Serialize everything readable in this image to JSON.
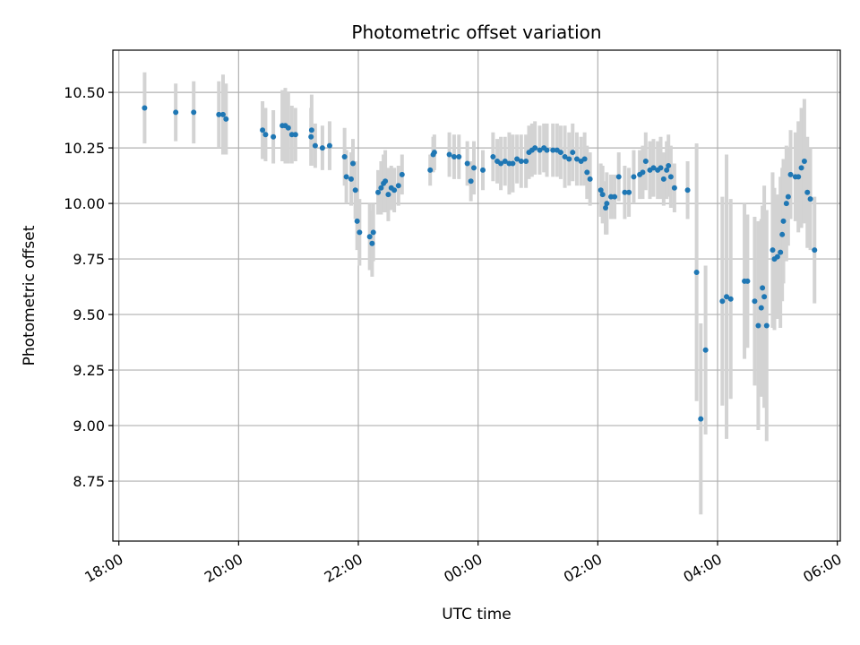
{
  "chart_data": {
    "type": "scatter",
    "title": "Photometric offset variation",
    "xlabel": "UTC time",
    "ylabel": "Photometric offset",
    "grid": true,
    "legend": "none",
    "x_unit": "hours since 18:00 UTC",
    "xlim": [
      -0.1,
      12.05
    ],
    "ylim": [
      8.48,
      10.69
    ],
    "x_ticks": [
      {
        "value": 0,
        "label": "18:00"
      },
      {
        "value": 2,
        "label": "20:00"
      },
      {
        "value": 4,
        "label": "22:00"
      },
      {
        "value": 6,
        "label": "00:00"
      },
      {
        "value": 8,
        "label": "02:00"
      },
      {
        "value": 10,
        "label": "04:00"
      },
      {
        "value": 12,
        "label": "06:00"
      }
    ],
    "y_ticks": [
      {
        "value": 8.75,
        "label": "8.75"
      },
      {
        "value": 9.0,
        "label": "9.00"
      },
      {
        "value": 9.25,
        "label": "9.25"
      },
      {
        "value": 9.5,
        "label": "9.50"
      },
      {
        "value": 9.75,
        "label": "9.75"
      },
      {
        "value": 10.0,
        "label": "10.00"
      },
      {
        "value": 10.25,
        "label": "10.25"
      },
      {
        "value": 10.5,
        "label": "10.50"
      }
    ],
    "colors": {
      "point": "#1f77b4",
      "errorbar": "#d3d3d3",
      "grid": "#b0b0b0",
      "axes": "#000000"
    },
    "series": [
      {
        "name": "Photometric offset",
        "points": [
          [
            0.43,
            10.43,
            0.16
          ],
          [
            0.95,
            10.41,
            0.13
          ],
          [
            1.25,
            10.41,
            0.14
          ],
          [
            1.67,
            10.4,
            0.15
          ],
          [
            1.74,
            10.4,
            0.18
          ],
          [
            1.79,
            10.38,
            0.16
          ],
          [
            2.4,
            10.33,
            0.13
          ],
          [
            2.45,
            10.31,
            0.12
          ],
          [
            2.58,
            10.3,
            0.12
          ],
          [
            2.73,
            10.35,
            0.16
          ],
          [
            2.78,
            10.35,
            0.17
          ],
          [
            2.83,
            10.34,
            0.16
          ],
          [
            2.89,
            10.31,
            0.13
          ],
          [
            2.95,
            10.31,
            0.12
          ],
          [
            3.21,
            10.3,
            0.13
          ],
          [
            3.22,
            10.33,
            0.16
          ],
          [
            3.28,
            10.26,
            0.1
          ],
          [
            3.4,
            10.25,
            0.1
          ],
          [
            3.52,
            10.26,
            0.11
          ],
          [
            3.77,
            10.21,
            0.13
          ],
          [
            3.8,
            10.12,
            0.12
          ],
          [
            3.88,
            10.11,
            0.12
          ],
          [
            3.91,
            10.18,
            0.11
          ],
          [
            3.95,
            10.06,
            0.13
          ],
          [
            3.98,
            9.92,
            0.13
          ],
          [
            4.02,
            9.87,
            0.15
          ],
          [
            4.19,
            9.85,
            0.15
          ],
          [
            4.23,
            9.82,
            0.15
          ],
          [
            4.25,
            9.87,
            0.13
          ],
          [
            4.33,
            10.05,
            0.1
          ],
          [
            4.38,
            10.07,
            0.12
          ],
          [
            4.42,
            10.09,
            0.13
          ],
          [
            4.45,
            10.1,
            0.14
          ],
          [
            4.5,
            10.04,
            0.12
          ],
          [
            4.55,
            10.07,
            0.1
          ],
          [
            4.6,
            10.06,
            0.1
          ],
          [
            4.67,
            10.08,
            0.09
          ],
          [
            4.73,
            10.13,
            0.09
          ],
          [
            5.2,
            10.15,
            0.07
          ],
          [
            5.25,
            10.22,
            0.08
          ],
          [
            5.27,
            10.23,
            0.08
          ],
          [
            5.52,
            10.22,
            0.1
          ],
          [
            5.6,
            10.21,
            0.1
          ],
          [
            5.68,
            10.21,
            0.1
          ],
          [
            5.82,
            10.18,
            0.1
          ],
          [
            5.88,
            10.1,
            0.09
          ],
          [
            5.93,
            10.16,
            0.12
          ],
          [
            6.08,
            10.15,
            0.09
          ],
          [
            6.25,
            10.21,
            0.11
          ],
          [
            6.32,
            10.19,
            0.1
          ],
          [
            6.38,
            10.18,
            0.12
          ],
          [
            6.45,
            10.19,
            0.11
          ],
          [
            6.52,
            10.18,
            0.14
          ],
          [
            6.58,
            10.18,
            0.13
          ],
          [
            6.65,
            10.2,
            0.11
          ],
          [
            6.72,
            10.19,
            0.12
          ],
          [
            6.8,
            10.19,
            0.12
          ],
          [
            6.85,
            10.23,
            0.12
          ],
          [
            6.9,
            10.24,
            0.12
          ],
          [
            6.95,
            10.25,
            0.12
          ],
          [
            7.03,
            10.24,
            0.11
          ],
          [
            7.1,
            10.25,
            0.11
          ],
          [
            7.15,
            10.24,
            0.12
          ],
          [
            7.25,
            10.24,
            0.12
          ],
          [
            7.32,
            10.24,
            0.12
          ],
          [
            7.38,
            10.23,
            0.12
          ],
          [
            7.45,
            10.21,
            0.14
          ],
          [
            7.52,
            10.2,
            0.12
          ],
          [
            7.58,
            10.23,
            0.13
          ],
          [
            7.65,
            10.2,
            0.12
          ],
          [
            7.72,
            10.19,
            0.11
          ],
          [
            7.78,
            10.2,
            0.12
          ],
          [
            7.82,
            10.14,
            0.12
          ],
          [
            7.87,
            10.11,
            0.12
          ],
          [
            8.05,
            10.06,
            0.12
          ],
          [
            8.08,
            10.04,
            0.13
          ],
          [
            8.13,
            9.98,
            0.12
          ],
          [
            8.15,
            10.0,
            0.14
          ],
          [
            8.22,
            10.03,
            0.1
          ],
          [
            8.28,
            10.03,
            0.1
          ],
          [
            8.35,
            10.12,
            0.11
          ],
          [
            8.45,
            10.05,
            0.12
          ],
          [
            8.52,
            10.05,
            0.11
          ],
          [
            8.6,
            10.12,
            0.12
          ],
          [
            8.7,
            10.13,
            0.11
          ],
          [
            8.75,
            10.14,
            0.12
          ],
          [
            8.8,
            10.19,
            0.13
          ],
          [
            8.87,
            10.15,
            0.13
          ],
          [
            8.93,
            10.16,
            0.13
          ],
          [
            9.0,
            10.15,
            0.13
          ],
          [
            9.05,
            10.16,
            0.14
          ],
          [
            9.1,
            10.11,
            0.12
          ],
          [
            9.15,
            10.15,
            0.13
          ],
          [
            9.18,
            10.17,
            0.14
          ],
          [
            9.22,
            10.12,
            0.14
          ],
          [
            9.28,
            10.07,
            0.11
          ],
          [
            9.5,
            10.06,
            0.13
          ],
          [
            9.65,
            9.69,
            0.58
          ],
          [
            9.72,
            9.03,
            0.43
          ],
          [
            9.8,
            9.34,
            0.38
          ],
          [
            10.08,
            9.56,
            0.47
          ],
          [
            10.15,
            9.58,
            0.64
          ],
          [
            10.22,
            9.57,
            0.45
          ],
          [
            10.45,
            9.65,
            0.35
          ],
          [
            10.5,
            9.65,
            0.3
          ],
          [
            10.62,
            9.56,
            0.38
          ],
          [
            10.68,
            9.45,
            0.47
          ],
          [
            10.73,
            9.53,
            0.4
          ],
          [
            10.75,
            9.62,
            0.37
          ],
          [
            10.78,
            9.58,
            0.5
          ],
          [
            10.82,
            9.45,
            0.52
          ],
          [
            10.92,
            9.79,
            0.35
          ],
          [
            10.95,
            9.75,
            0.32
          ],
          [
            11.0,
            9.76,
            0.28
          ],
          [
            11.05,
            9.78,
            0.34
          ],
          [
            11.08,
            9.86,
            0.3
          ],
          [
            11.1,
            9.92,
            0.28
          ],
          [
            11.15,
            10.0,
            0.26
          ],
          [
            11.18,
            10.03,
            0.22
          ],
          [
            11.22,
            10.13,
            0.2
          ],
          [
            11.3,
            10.12,
            0.2
          ],
          [
            11.35,
            10.12,
            0.25
          ],
          [
            11.4,
            10.16,
            0.27
          ],
          [
            11.45,
            10.19,
            0.28
          ],
          [
            11.5,
            10.05,
            0.25
          ],
          [
            11.55,
            10.02,
            0.23
          ],
          [
            11.62,
            9.79,
            0.24
          ]
        ]
      }
    ]
  }
}
